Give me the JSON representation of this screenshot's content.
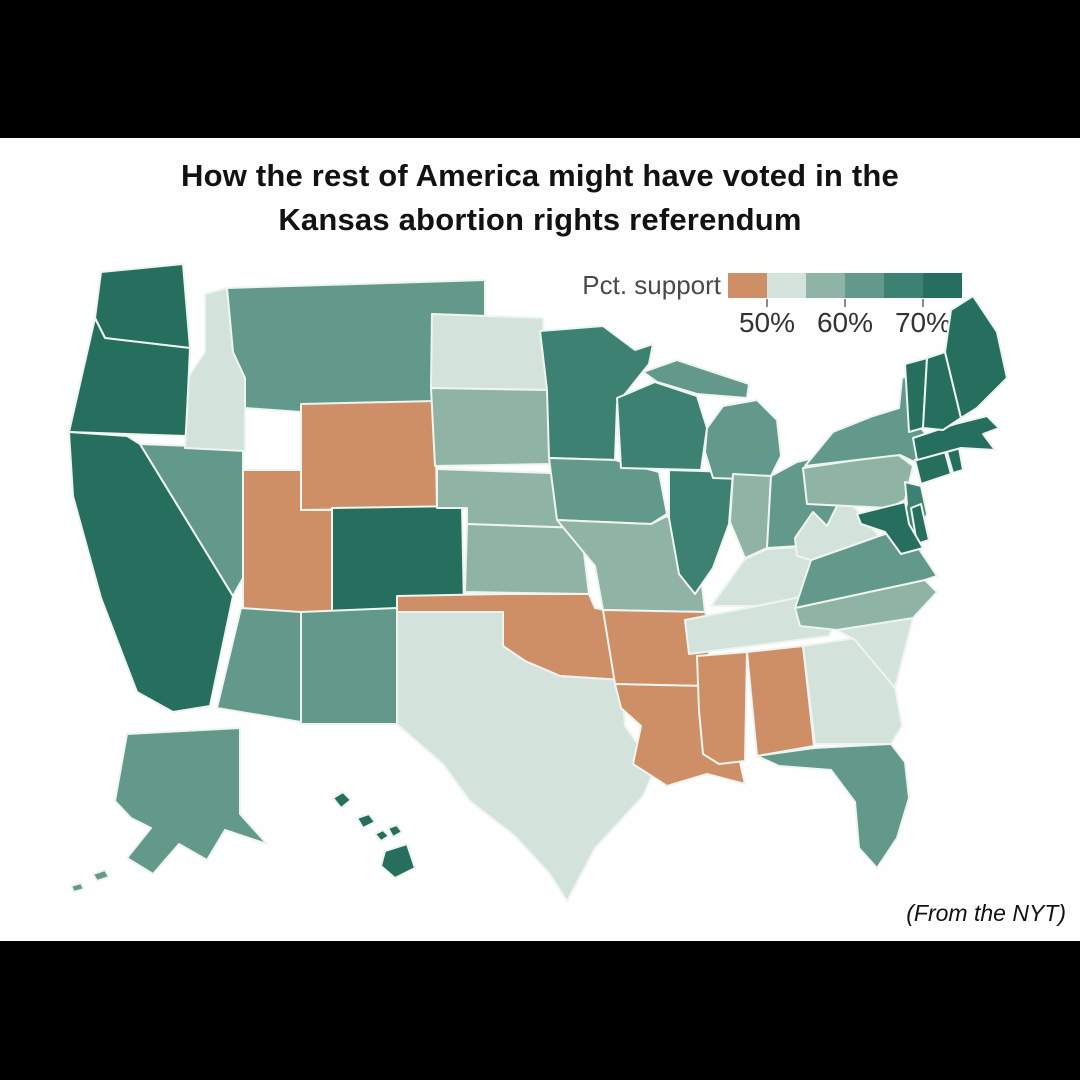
{
  "title": {
    "line1": "How the rest of America might have voted in the",
    "line2": "Kansas abortion rights referendum"
  },
  "caption": "(From the NYT)",
  "chart_data": {
    "type": "choropleth-map",
    "title": "How the rest of America might have voted in the Kansas abortion rights referendum",
    "legend": {
      "label": "Pct. support",
      "ticks": [
        "50%",
        "60%",
        "70%"
      ],
      "tick_positions_after_bin": [
        1,
        3,
        5
      ],
      "bins": [
        {
          "id": "below_50",
          "range": "<50%",
          "color": "#CE8F66"
        },
        {
          "id": "b50_55",
          "range": "50-55%",
          "color": "#D3E3DB"
        },
        {
          "id": "b55_60",
          "range": "55-60%",
          "color": "#8FB3A4"
        },
        {
          "id": "b60_65",
          "range": "60-65%",
          "color": "#63998A"
        },
        {
          "id": "b65_70",
          "range": "65-70%",
          "color": "#3D8172"
        },
        {
          "id": "b70_plus",
          "range": "70%+",
          "color": "#266E5E"
        }
      ]
    },
    "states": [
      {
        "code": "WA",
        "name": "Washington",
        "bin": "b70_plus"
      },
      {
        "code": "OR",
        "name": "Oregon",
        "bin": "b70_plus"
      },
      {
        "code": "CA",
        "name": "California",
        "bin": "b70_plus"
      },
      {
        "code": "ID",
        "name": "Idaho",
        "bin": "b50_55"
      },
      {
        "code": "NV",
        "name": "Nevada",
        "bin": "b60_65"
      },
      {
        "code": "MT",
        "name": "Montana",
        "bin": "b60_65"
      },
      {
        "code": "WY",
        "name": "Wyoming",
        "bin": "below_50"
      },
      {
        "code": "UT",
        "name": "Utah",
        "bin": "below_50"
      },
      {
        "code": "CO",
        "name": "Colorado",
        "bin": "b70_plus"
      },
      {
        "code": "AZ",
        "name": "Arizona",
        "bin": "b60_65"
      },
      {
        "code": "NM",
        "name": "New Mexico",
        "bin": "b60_65"
      },
      {
        "code": "ND",
        "name": "North Dakota",
        "bin": "b50_55"
      },
      {
        "code": "SD",
        "name": "South Dakota",
        "bin": "b55_60"
      },
      {
        "code": "NE",
        "name": "Nebraska",
        "bin": "b55_60"
      },
      {
        "code": "KS",
        "name": "Kansas",
        "bin": "b55_60"
      },
      {
        "code": "OK",
        "name": "Oklahoma",
        "bin": "below_50"
      },
      {
        "code": "TX",
        "name": "Texas",
        "bin": "b50_55"
      },
      {
        "code": "MN",
        "name": "Minnesota",
        "bin": "b65_70"
      },
      {
        "code": "IA",
        "name": "Iowa",
        "bin": "b60_65"
      },
      {
        "code": "MO",
        "name": "Missouri",
        "bin": "b55_60"
      },
      {
        "code": "AR",
        "name": "Arkansas",
        "bin": "below_50"
      },
      {
        "code": "LA",
        "name": "Louisiana",
        "bin": "below_50"
      },
      {
        "code": "WI",
        "name": "Wisconsin",
        "bin": "b65_70"
      },
      {
        "code": "IL",
        "name": "Illinois",
        "bin": "b65_70"
      },
      {
        "code": "MI",
        "name": "Michigan",
        "bin": "b60_65"
      },
      {
        "code": "IN",
        "name": "Indiana",
        "bin": "b55_60"
      },
      {
        "code": "OH",
        "name": "Ohio",
        "bin": "b60_65"
      },
      {
        "code": "KY",
        "name": "Kentucky",
        "bin": "b50_55"
      },
      {
        "code": "TN",
        "name": "Tennessee",
        "bin": "b50_55"
      },
      {
        "code": "MS",
        "name": "Mississippi",
        "bin": "below_50"
      },
      {
        "code": "AL",
        "name": "Alabama",
        "bin": "below_50"
      },
      {
        "code": "GA",
        "name": "Georgia",
        "bin": "b50_55"
      },
      {
        "code": "FL",
        "name": "Florida",
        "bin": "b60_65"
      },
      {
        "code": "SC",
        "name": "South Carolina",
        "bin": "b50_55"
      },
      {
        "code": "NC",
        "name": "North Carolina",
        "bin": "b55_60"
      },
      {
        "code": "VA",
        "name": "Virginia",
        "bin": "b60_65"
      },
      {
        "code": "WV",
        "name": "West Virginia",
        "bin": "b50_55"
      },
      {
        "code": "PA",
        "name": "Pennsylvania",
        "bin": "b55_60"
      },
      {
        "code": "NY",
        "name": "New York",
        "bin": "b60_65"
      },
      {
        "code": "NJ",
        "name": "New Jersey",
        "bin": "b65_70"
      },
      {
        "code": "DE",
        "name": "Delaware",
        "bin": "b70_plus"
      },
      {
        "code": "MD",
        "name": "Maryland",
        "bin": "b70_plus"
      },
      {
        "code": "CT",
        "name": "Connecticut",
        "bin": "b70_plus"
      },
      {
        "code": "RI",
        "name": "Rhode Island",
        "bin": "b70_plus"
      },
      {
        "code": "MA",
        "name": "Massachusetts",
        "bin": "b70_plus"
      },
      {
        "code": "VT",
        "name": "Vermont",
        "bin": "b70_plus"
      },
      {
        "code": "NH",
        "name": "New Hampshire",
        "bin": "b70_plus"
      },
      {
        "code": "ME",
        "name": "Maine",
        "bin": "b70_plus"
      },
      {
        "code": "AK",
        "name": "Alaska",
        "bin": "b60_65"
      },
      {
        "code": "HI",
        "name": "Hawaii",
        "bin": "b70_plus"
      }
    ]
  }
}
